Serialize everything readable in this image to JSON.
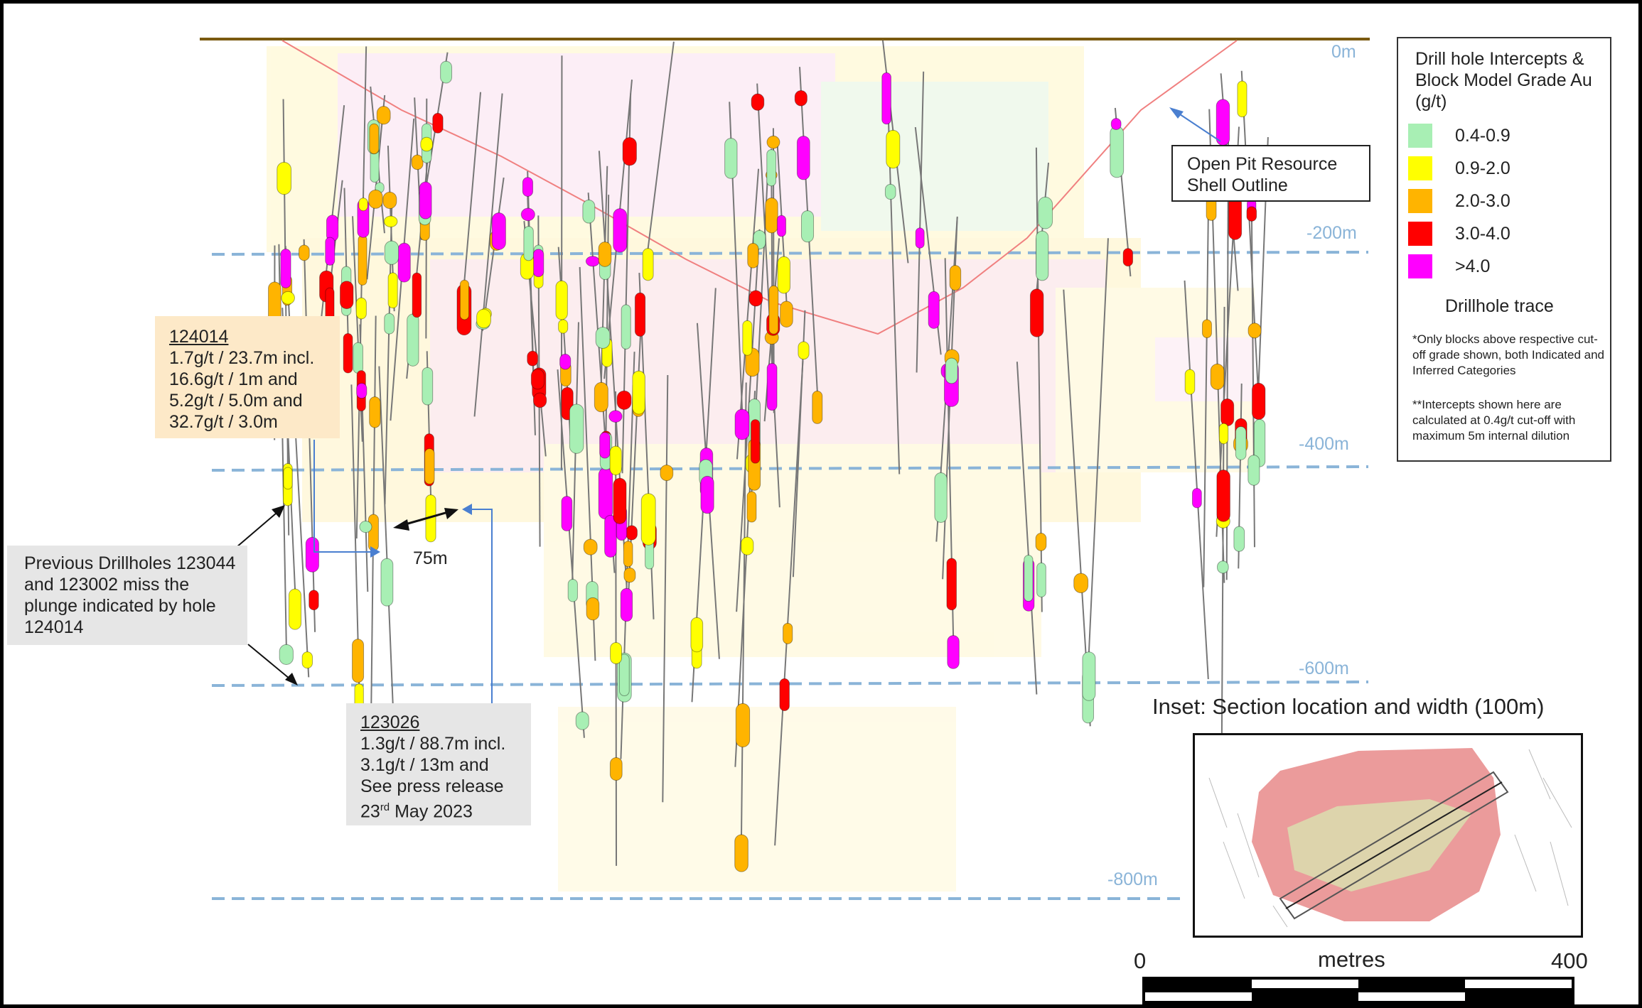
{
  "depth_labels": [
    "0m",
    "-200m",
    "-400m",
    "-600m",
    "-800m"
  ],
  "legend": {
    "title": "Drill hole Intercepts & Block Model Grade Au (g/t)",
    "items": [
      {
        "label": "0.4-0.9",
        "color": "#a8efb4"
      },
      {
        "label": "0.9-2.0",
        "color": "#ffff00"
      },
      {
        "label": "2.0-3.0",
        "color": "#ffb400"
      },
      {
        "label": "3.0-4.0",
        "color": "#ff0000"
      },
      {
        "label": ">4.0",
        "color": "#ff00ff"
      }
    ],
    "trace_label": "Drillhole trace",
    "note1": "*Only blocks above respective cut-off grade shown, both Indicated and Inferred Categories",
    "note2": "**Intercepts shown here are calculated at 0.4g/t cut-off with maximum 5m internal dilution"
  },
  "open_pit_label": "Open Pit Resource Shell Outline",
  "callout_124014": {
    "hole": "124014",
    "line1": "1.7g/t / 23.7m incl.",
    "line2": "16.6g/t / 1m and",
    "line3": "5.2g/t / 5.0m and",
    "line4": "32.7g/t / 3.0m"
  },
  "callout_123026": {
    "hole": "123026",
    "line1": "1.3g/t / 88.7m incl.",
    "line2": "3.1g/t / 13m and",
    "line3": "See press release",
    "line4_day": "23",
    "line4_sup": "rd",
    "line4_rest": " May 2023"
  },
  "previous_drillholes": "Previous Drillholes 123044 and 123002 miss the plunge indicated by hole 124014",
  "spacing_label": "75m",
  "inset_title": "Inset: Section location and width (100m)",
  "scale": {
    "start": "0",
    "unit": "metres",
    "end": "400"
  },
  "colors": {
    "depth_line": "#8ab4d8",
    "pit_outline": "#f08080",
    "arrow_blue": "#4a7fd0"
  }
}
